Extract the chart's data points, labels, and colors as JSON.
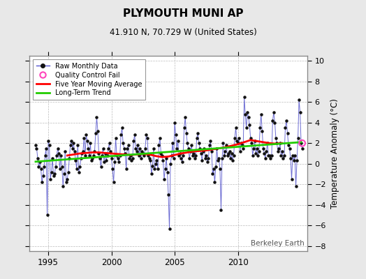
{
  "title": "PLYMOUTH MUNI AP",
  "subtitle": "41.910 N, 70.729 W (United States)",
  "ylabel": "Temperature Anomaly (°C)",
  "attribution": "Berkeley Earth",
  "ylim": [
    -8.5,
    10.5
  ],
  "yticks": [
    -8,
    -6,
    -4,
    -2,
    0,
    2,
    4,
    6,
    8,
    10
  ],
  "xlim_start": 1993.5,
  "xlim_end": 2015.5,
  "xticks": [
    1995,
    2000,
    2005,
    2010
  ],
  "bg_color": "#e8e8e8",
  "plot_bg_color": "#ffffff",
  "raw_color": "#5555cc",
  "raw_marker_color": "#111111",
  "moving_avg_color": "#ff0000",
  "trend_color": "#22cc00",
  "qc_fail_color": "#ff44bb",
  "raw_data": [
    [
      1994.0,
      1.8
    ],
    [
      1994.083,
      1.5
    ],
    [
      1994.167,
      0.5
    ],
    [
      1994.25,
      -0.3
    ],
    [
      1994.333,
      0.2
    ],
    [
      1994.417,
      -0.5
    ],
    [
      1994.5,
      -1.8
    ],
    [
      1994.583,
      -1.2
    ],
    [
      1994.667,
      -0.3
    ],
    [
      1994.75,
      0.8
    ],
    [
      1994.833,
      1.5
    ],
    [
      1994.917,
      -5.0
    ],
    [
      1995.0,
      2.2
    ],
    [
      1995.083,
      1.8
    ],
    [
      1995.167,
      -1.5
    ],
    [
      1995.25,
      -0.8
    ],
    [
      1995.333,
      0.5
    ],
    [
      1995.417,
      -1.2
    ],
    [
      1995.5,
      -1.0
    ],
    [
      1995.583,
      -0.3
    ],
    [
      1995.667,
      0.8
    ],
    [
      1995.75,
      1.5
    ],
    [
      1995.833,
      1.0
    ],
    [
      1995.917,
      -0.5
    ],
    [
      1996.0,
      0.8
    ],
    [
      1996.083,
      -0.3
    ],
    [
      1996.167,
      -2.2
    ],
    [
      1996.25,
      -1.0
    ],
    [
      1996.333,
      1.2
    ],
    [
      1996.417,
      -1.8
    ],
    [
      1996.5,
      -1.5
    ],
    [
      1996.583,
      -0.8
    ],
    [
      1996.667,
      0.5
    ],
    [
      1996.75,
      1.8
    ],
    [
      1996.833,
      2.2
    ],
    [
      1996.917,
      1.5
    ],
    [
      1997.0,
      2.0
    ],
    [
      1997.083,
      1.2
    ],
    [
      1997.167,
      0.3
    ],
    [
      1997.25,
      -0.5
    ],
    [
      1997.333,
      1.8
    ],
    [
      1997.417,
      -0.8
    ],
    [
      1997.5,
      -0.3
    ],
    [
      1997.583,
      0.5
    ],
    [
      1997.667,
      1.0
    ],
    [
      1997.75,
      1.2
    ],
    [
      1997.833,
      2.5
    ],
    [
      1997.917,
      0.8
    ],
    [
      1998.0,
      2.8
    ],
    [
      1998.083,
      2.2
    ],
    [
      1998.167,
      1.5
    ],
    [
      1998.25,
      0.8
    ],
    [
      1998.333,
      2.0
    ],
    [
      1998.417,
      0.3
    ],
    [
      1998.5,
      0.5
    ],
    [
      1998.583,
      0.8
    ],
    [
      1998.667,
      1.2
    ],
    [
      1998.75,
      3.0
    ],
    [
      1998.833,
      4.5
    ],
    [
      1998.917,
      3.2
    ],
    [
      1999.0,
      1.0
    ],
    [
      1999.083,
      0.5
    ],
    [
      1999.167,
      -0.3
    ],
    [
      1999.25,
      0.8
    ],
    [
      1999.333,
      1.5
    ],
    [
      1999.417,
      0.2
    ],
    [
      1999.5,
      1.0
    ],
    [
      1999.583,
      0.3
    ],
    [
      1999.667,
      0.8
    ],
    [
      1999.75,
      1.5
    ],
    [
      1999.833,
      2.0
    ],
    [
      1999.917,
      1.2
    ],
    [
      2000.0,
      0.5
    ],
    [
      2000.083,
      -0.5
    ],
    [
      2000.167,
      -1.8
    ],
    [
      2000.25,
      0.2
    ],
    [
      2000.333,
      2.5
    ],
    [
      2000.417,
      0.8
    ],
    [
      2000.5,
      0.5
    ],
    [
      2000.583,
      0.2
    ],
    [
      2000.667,
      0.8
    ],
    [
      2000.75,
      2.8
    ],
    [
      2000.833,
      3.5
    ],
    [
      2000.917,
      2.0
    ],
    [
      2001.0,
      1.5
    ],
    [
      2001.083,
      1.0
    ],
    [
      2001.167,
      -0.5
    ],
    [
      2001.25,
      1.5
    ],
    [
      2001.333,
      1.8
    ],
    [
      2001.417,
      0.5
    ],
    [
      2001.5,
      0.8
    ],
    [
      2001.583,
      0.3
    ],
    [
      2001.667,
      0.5
    ],
    [
      2001.75,
      2.2
    ],
    [
      2001.833,
      2.8
    ],
    [
      2001.917,
      1.5
    ],
    [
      2002.0,
      1.2
    ],
    [
      2002.083,
      1.8
    ],
    [
      2002.167,
      0.8
    ],
    [
      2002.25,
      1.5
    ],
    [
      2002.333,
      0.5
    ],
    [
      2002.417,
      1.2
    ],
    [
      2002.5,
      1.0
    ],
    [
      2002.583,
      0.8
    ],
    [
      2002.667,
      1.5
    ],
    [
      2002.75,
      2.8
    ],
    [
      2002.833,
      2.5
    ],
    [
      2002.917,
      0.8
    ],
    [
      2003.0,
      0.5
    ],
    [
      2003.083,
      0.3
    ],
    [
      2003.167,
      -1.0
    ],
    [
      2003.25,
      -0.2
    ],
    [
      2003.333,
      1.5
    ],
    [
      2003.417,
      -0.5
    ],
    [
      2003.5,
      0.0
    ],
    [
      2003.583,
      0.3
    ],
    [
      2003.667,
      -0.5
    ],
    [
      2003.75,
      1.8
    ],
    [
      2003.833,
      2.5
    ],
    [
      2003.917,
      1.0
    ],
    [
      2004.0,
      0.8
    ],
    [
      2004.083,
      0.3
    ],
    [
      2004.167,
      -1.5
    ],
    [
      2004.25,
      -0.5
    ],
    [
      2004.333,
      0.5
    ],
    [
      2004.417,
      -0.8
    ],
    [
      2004.5,
      -3.0
    ],
    [
      2004.583,
      -6.3
    ],
    [
      2004.667,
      0.0
    ],
    [
      2004.75,
      0.8
    ],
    [
      2004.833,
      2.0
    ],
    [
      2004.917,
      0.5
    ],
    [
      2005.0,
      4.0
    ],
    [
      2005.083,
      2.8
    ],
    [
      2005.167,
      1.5
    ],
    [
      2005.25,
      2.2
    ],
    [
      2005.333,
      0.8
    ],
    [
      2005.417,
      1.0
    ],
    [
      2005.5,
      0.5
    ],
    [
      2005.583,
      0.2
    ],
    [
      2005.667,
      0.8
    ],
    [
      2005.75,
      3.5
    ],
    [
      2005.833,
      4.5
    ],
    [
      2005.917,
      3.0
    ],
    [
      2006.0,
      2.0
    ],
    [
      2006.083,
      1.5
    ],
    [
      2006.167,
      0.5
    ],
    [
      2006.25,
      1.2
    ],
    [
      2006.333,
      1.8
    ],
    [
      2006.417,
      0.8
    ],
    [
      2006.5,
      1.0
    ],
    [
      2006.583,
      0.5
    ],
    [
      2006.667,
      0.8
    ],
    [
      2006.75,
      2.5
    ],
    [
      2006.833,
      3.0
    ],
    [
      2006.917,
      2.0
    ],
    [
      2007.0,
      1.5
    ],
    [
      2007.083,
      1.0
    ],
    [
      2007.167,
      0.3
    ],
    [
      2007.25,
      1.2
    ],
    [
      2007.333,
      1.5
    ],
    [
      2007.417,
      0.5
    ],
    [
      2007.5,
      0.8
    ],
    [
      2007.583,
      0.2
    ],
    [
      2007.667,
      0.5
    ],
    [
      2007.75,
      1.8
    ],
    [
      2007.833,
      2.2
    ],
    [
      2007.917,
      1.2
    ],
    [
      2008.0,
      -1.0
    ],
    [
      2008.083,
      -0.5
    ],
    [
      2008.167,
      -1.8
    ],
    [
      2008.25,
      -0.3
    ],
    [
      2008.333,
      1.5
    ],
    [
      2008.417,
      0.3
    ],
    [
      2008.5,
      0.5
    ],
    [
      2008.583,
      -0.5
    ],
    [
      2008.667,
      -4.5
    ],
    [
      2008.75,
      0.5
    ],
    [
      2008.833,
      2.0
    ],
    [
      2008.917,
      0.8
    ],
    [
      2009.0,
      1.2
    ],
    [
      2009.083,
      1.8
    ],
    [
      2009.167,
      0.8
    ],
    [
      2009.25,
      1.0
    ],
    [
      2009.333,
      1.2
    ],
    [
      2009.417,
      0.5
    ],
    [
      2009.5,
      1.0
    ],
    [
      2009.583,
      0.3
    ],
    [
      2009.667,
      0.8
    ],
    [
      2009.75,
      2.5
    ],
    [
      2009.833,
      3.5
    ],
    [
      2009.917,
      2.2
    ],
    [
      2010.0,
      2.0
    ],
    [
      2010.083,
      2.5
    ],
    [
      2010.167,
      1.2
    ],
    [
      2010.25,
      2.0
    ],
    [
      2010.333,
      1.8
    ],
    [
      2010.417,
      1.5
    ],
    [
      2010.5,
      6.5
    ],
    [
      2010.583,
      4.8
    ],
    [
      2010.667,
      3.5
    ],
    [
      2010.75,
      5.0
    ],
    [
      2010.833,
      4.5
    ],
    [
      2010.917,
      3.8
    ],
    [
      2011.0,
      2.5
    ],
    [
      2011.083,
      2.0
    ],
    [
      2011.167,
      0.8
    ],
    [
      2011.25,
      1.5
    ],
    [
      2011.333,
      2.2
    ],
    [
      2011.417,
      1.0
    ],
    [
      2011.5,
      1.5
    ],
    [
      2011.583,
      0.8
    ],
    [
      2011.667,
      1.2
    ],
    [
      2011.75,
      3.5
    ],
    [
      2011.833,
      4.8
    ],
    [
      2011.917,
      3.2
    ],
    [
      2012.0,
      1.5
    ],
    [
      2012.083,
      1.0
    ],
    [
      2012.167,
      0.5
    ],
    [
      2012.25,
      1.2
    ],
    [
      2012.333,
      2.0
    ],
    [
      2012.417,
      0.8
    ],
    [
      2012.5,
      0.8
    ],
    [
      2012.583,
      0.5
    ],
    [
      2012.667,
      0.8
    ],
    [
      2012.75,
      4.2
    ],
    [
      2012.833,
      5.0
    ],
    [
      2012.917,
      4.0
    ],
    [
      2013.0,
      2.5
    ],
    [
      2013.083,
      2.0
    ],
    [
      2013.167,
      1.2
    ],
    [
      2013.25,
      1.5
    ],
    [
      2013.333,
      2.0
    ],
    [
      2013.417,
      0.8
    ],
    [
      2013.5,
      1.2
    ],
    [
      2013.583,
      0.5
    ],
    [
      2013.667,
      0.8
    ],
    [
      2013.75,
      3.5
    ],
    [
      2013.833,
      4.2
    ],
    [
      2013.917,
      3.0
    ],
    [
      2014.0,
      1.8
    ],
    [
      2014.083,
      1.5
    ],
    [
      2014.167,
      0.5
    ],
    [
      2014.25,
      -1.5
    ],
    [
      2014.333,
      0.8
    ],
    [
      2014.417,
      0.3
    ],
    [
      2014.5,
      0.8
    ],
    [
      2014.583,
      -2.2
    ],
    [
      2014.667,
      0.3
    ],
    [
      2014.75,
      2.5
    ],
    [
      2014.833,
      6.2
    ],
    [
      2014.917,
      5.0
    ],
    [
      2015.0,
      2.0
    ],
    [
      2015.083,
      1.5
    ]
  ],
  "moving_avg_data": [
    [
      1996.5,
      0.8
    ],
    [
      1997.0,
      0.9
    ],
    [
      1997.5,
      1.0
    ],
    [
      1998.0,
      1.05
    ],
    [
      1998.5,
      1.1
    ],
    [
      1999.0,
      1.1
    ],
    [
      1999.5,
      1.05
    ],
    [
      2000.0,
      1.0
    ],
    [
      2000.5,
      0.95
    ],
    [
      2001.0,
      0.9
    ],
    [
      2001.5,
      0.85
    ],
    [
      2002.0,
      0.9
    ],
    [
      2002.5,
      0.95
    ],
    [
      2003.0,
      0.9
    ],
    [
      2003.5,
      0.75
    ],
    [
      2004.0,
      0.65
    ],
    [
      2004.5,
      0.7
    ],
    [
      2005.0,
      0.85
    ],
    [
      2005.5,
      1.0
    ],
    [
      2006.0,
      1.1
    ],
    [
      2006.5,
      1.2
    ],
    [
      2007.0,
      1.25
    ],
    [
      2007.5,
      1.3
    ],
    [
      2008.0,
      1.4
    ],
    [
      2008.5,
      1.5
    ],
    [
      2009.0,
      1.6
    ],
    [
      2009.5,
      1.75
    ],
    [
      2010.0,
      1.9
    ],
    [
      2010.5,
      2.1
    ],
    [
      2011.0,
      2.3
    ],
    [
      2011.5,
      2.2
    ],
    [
      2012.0,
      2.1
    ],
    [
      2012.5,
      2.0
    ],
    [
      2013.0,
      1.95
    ],
    [
      2013.5,
      2.0
    ]
  ],
  "trend_data": [
    [
      1994.0,
      0.2
    ],
    [
      2015.0,
      2.1
    ]
  ],
  "qc_fail_points": [
    [
      2015.083,
      2.0
    ]
  ]
}
